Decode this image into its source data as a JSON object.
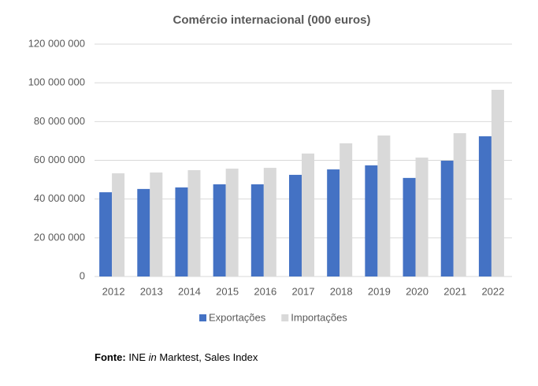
{
  "chart_data": {
    "type": "bar",
    "title": "Comércio internacional (000 euros)",
    "categories": [
      "2012",
      "2013",
      "2014",
      "2015",
      "2016",
      "2017",
      "2018",
      "2019",
      "2020",
      "2021",
      "2022"
    ],
    "series": [
      {
        "name": "Exportações",
        "color": "#4472c4",
        "values": [
          43500000,
          45200000,
          46000000,
          47600000,
          47600000,
          52500000,
          55300000,
          57400000,
          50900000,
          59800000,
          72400000
        ]
      },
      {
        "name": "Importações",
        "color": "#d9d9d9",
        "values": [
          53300000,
          53700000,
          54900000,
          55700000,
          56100000,
          63500000,
          68800000,
          72800000,
          61400000,
          74000000,
          96400000
        ]
      }
    ],
    "ylim": [
      0,
      120000000
    ],
    "yticks": [
      0,
      {
        "value": 20000000,
        "label": "20 000 000"
      },
      {
        "value": 40000000,
        "label": "40 000 000"
      },
      {
        "value": 60000000,
        "label": "60 000 000"
      },
      {
        "value": 80000000,
        "label": "80 000 000"
      },
      {
        "value": 100000000,
        "label": "100 000 000"
      },
      {
        "value": 120000000,
        "label": "120 000 000"
      }
    ],
    "grid": true,
    "legend": "bottom"
  },
  "source": {
    "label": "Fonte:",
    "parts": [
      "INE",
      "in",
      "Marktest, Sales Index"
    ]
  }
}
